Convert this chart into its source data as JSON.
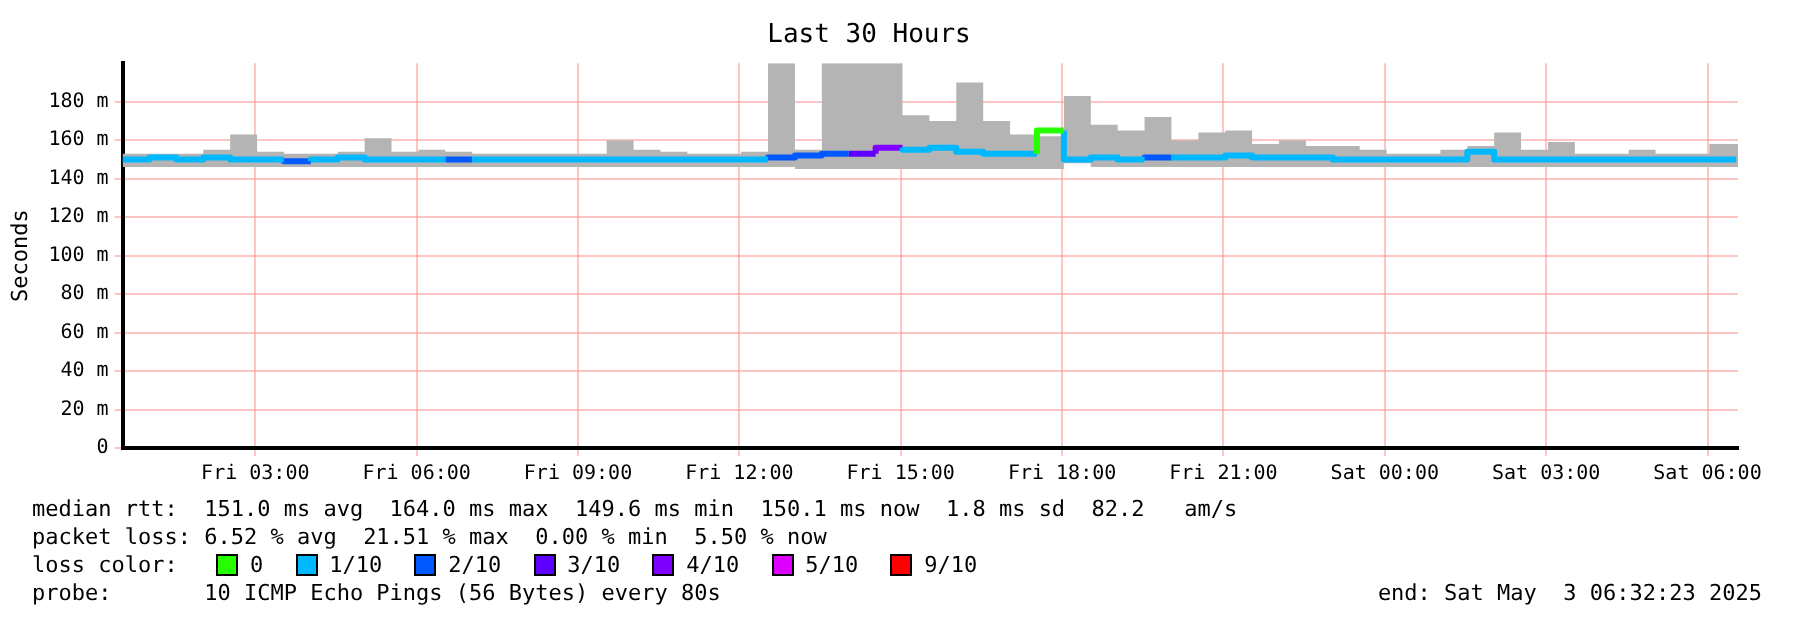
{
  "chart_data": {
    "type": "step",
    "title": "Last 30 Hours",
    "ylabel": "Seconds",
    "legend_title": "loss color:",
    "legend": "bottom",
    "grid": true,
    "xlim": [
      "2025-05-02T00:32",
      "2025-05-03T06:34"
    ],
    "xticks": [
      {
        "value": "2025-05-02T03:00",
        "label": "Fri 03:00"
      },
      {
        "value": "2025-05-02T06:00",
        "label": "Fri 06:00"
      },
      {
        "value": "2025-05-02T09:00",
        "label": "Fri 09:00"
      },
      {
        "value": "2025-05-02T12:00",
        "label": "Fri 12:00"
      },
      {
        "value": "2025-05-02T15:00",
        "label": "Fri 15:00"
      },
      {
        "value": "2025-05-02T18:00",
        "label": "Fri 18:00"
      },
      {
        "value": "2025-05-02T21:00",
        "label": "Fri 21:00"
      },
      {
        "value": "2025-05-03T00:00",
        "label": "Sat 00:00"
      },
      {
        "value": "2025-05-03T03:00",
        "label": "Sat 03:00"
      },
      {
        "value": "2025-05-03T06:00",
        "label": "Sat 06:00"
      }
    ],
    "ylim": [
      0,
      200
    ],
    "yticks": [
      0,
      {
        "value": 20,
        "label": "20 m"
      },
      {
        "value": 40,
        "label": "40 m"
      },
      {
        "value": 60,
        "label": "60 m"
      },
      {
        "value": 80,
        "label": "80 m"
      },
      {
        "value": 100,
        "label": "100 m"
      },
      {
        "value": 120,
        "label": "120 m"
      },
      {
        "value": 140,
        "label": "140 m"
      },
      {
        "value": 160,
        "label": "160 m"
      },
      {
        "value": 180,
        "label": "180 m"
      }
    ],
    "series": [
      {
        "name": "0",
        "color": "#26ff00",
        "x": [
          "2025-05-02T17:32",
          "2025-05-02T18:02"
        ],
        "values": [
          153,
          165
        ]
      },
      {
        "name": "1/10",
        "color": "#00b8ff",
        "x": [
          "2025-05-02T00:32",
          "2025-05-02T01:02",
          "2025-05-02T01:32",
          "2025-05-02T02:02",
          "2025-05-02T02:32",
          "2025-05-02T03:02",
          "2025-05-02T03:32",
          "2025-05-02T03:47",
          "2025-05-02T04:02",
          "2025-05-02T04:32",
          "2025-05-02T05:02",
          "2025-05-02T05:32",
          "2025-05-02T06:02",
          "2025-05-02T06:32",
          "2025-05-02T06:47",
          "2025-05-02T07:02",
          "2025-05-02T07:32",
          "2025-05-02T08:02",
          "2025-05-02T08:32",
          "2025-05-02T09:02",
          "2025-05-02T09:32",
          "2025-05-02T10:02",
          "2025-05-02T10:32",
          "2025-05-02T11:02",
          "2025-05-02T11:32",
          "2025-05-02T12:02",
          "2025-05-02T12:32",
          "2025-05-02T13:02",
          "2025-05-02T13:32",
          "2025-05-02T14:02",
          "2025-05-02T14:32",
          "2025-05-02T15:02",
          "2025-05-02T15:32",
          "2025-05-02T16:02",
          "2025-05-02T16:32",
          "2025-05-02T17:02",
          "2025-05-02T17:32",
          "2025-05-02T17:47",
          "2025-05-02T18:02",
          "2025-05-02T18:32",
          "2025-05-02T19:02",
          "2025-05-02T19:32",
          "2025-05-02T19:47",
          "2025-05-02T20:02",
          "2025-05-02T20:32",
          "2025-05-02T21:02",
          "2025-05-02T21:32",
          "2025-05-02T22:02",
          "2025-05-02T22:32",
          "2025-05-02T23:02",
          "2025-05-02T23:32",
          "2025-05-03T00:02",
          "2025-05-03T00:32",
          "2025-05-03T01:02",
          "2025-05-03T01:32",
          "2025-05-03T02:02",
          "2025-05-03T02:32",
          "2025-05-03T03:02",
          "2025-05-03T03:32",
          "2025-05-03T04:02",
          "2025-05-03T04:32",
          "2025-05-03T05:02",
          "2025-05-03T05:32",
          "2025-05-03T06:02",
          "2025-05-03T06:32"
        ],
        "values": [
          150,
          150,
          151,
          150,
          151,
          150,
          150,
          null,
          149,
          150,
          151,
          150,
          150,
          150,
          null,
          150,
          150,
          150,
          150,
          150,
          150,
          150,
          150,
          150,
          150,
          150,
          150,
          null,
          null,
          null,
          null,
          156,
          155,
          156,
          154,
          153,
          153,
          null,
          165,
          150,
          151,
          150,
          null,
          151,
          151,
          151,
          152,
          151,
          151,
          151,
          150,
          150,
          150,
          150,
          150,
          154,
          150,
          150,
          150,
          150,
          150,
          150,
          150,
          150,
          150
        ],
        "lower": [
          146,
          146,
          146,
          146,
          146,
          146,
          146,
          null,
          146,
          146,
          146,
          146,
          146,
          146,
          null,
          146,
          146,
          146,
          146,
          146,
          146,
          146,
          146,
          146,
          146,
          146,
          146,
          145,
          145,
          145,
          145,
          145,
          145,
          145,
          145,
          145,
          145,
          null,
          148,
          146,
          146,
          146,
          null,
          146,
          146,
          146,
          146,
          146,
          146,
          146,
          146,
          146,
          146,
          146,
          146,
          146,
          146,
          146,
          146,
          146,
          146,
          146,
          146,
          146,
          146
        ],
        "upper": [
          153,
          153,
          153,
          155,
          163,
          154,
          153,
          null,
          153,
          154,
          161,
          154,
          155,
          154,
          null,
          153,
          153,
          153,
          153,
          153,
          160,
          155,
          154,
          153,
          153,
          154,
          200,
          155,
          200,
          200,
          200,
          173,
          170,
          190,
          170,
          163,
          162,
          null,
          183,
          168,
          165,
          172,
          null,
          160,
          164,
          165,
          158,
          160,
          157,
          157,
          155,
          153,
          153,
          155,
          157,
          164,
          155,
          159,
          153,
          153,
          155,
          153,
          153,
          158,
          158
        ]
      },
      {
        "name": "2/10",
        "color": "#0059ff",
        "x": [
          "2025-05-02T03:32",
          "2025-05-02T04:02",
          "2025-05-02T05:00",
          "2025-05-02T06:32",
          "2025-05-02T07:02",
          "2025-05-02T09:00",
          "2025-05-02T12:32",
          "2025-05-02T13:02",
          "2025-05-02T13:32",
          "2025-05-02T14:02",
          "2025-05-02T17:00",
          "2025-05-02T19:32",
          "2025-05-02T20:02"
        ],
        "values": [
          150,
          149,
          null,
          150,
          150,
          null,
          150,
          151,
          152,
          153,
          null,
          150,
          151
        ]
      },
      {
        "name": "3/10",
        "color": "#5e00ff",
        "x": [
          "2025-05-02T14:02",
          "2025-05-02T14:32"
        ],
        "values": [
          153,
          153
        ]
      },
      {
        "name": "4/10",
        "color": "#7e00ff",
        "x": [
          "2025-05-02T14:32",
          "2025-05-02T15:02"
        ],
        "values": [
          153,
          156
        ]
      },
      {
        "name": "5/10",
        "color": "#dd00ff"
      },
      {
        "name": "9/10",
        "color": "#ff0000"
      }
    ],
    "annotations": [
      "median rtt:  151.0 ms avg  164.0 ms max  149.6 ms min  150.1 ms now  1.8 ms sd  82.2   am/s",
      "packet loss: 6.52 % avg  21.51 % max  0.00 % min  5.50 % now",
      "probe:       10 ICMP Echo Pings (56 Bytes) every 80s",
      "end: Sat May  3 06:32:23 2025"
    ]
  }
}
